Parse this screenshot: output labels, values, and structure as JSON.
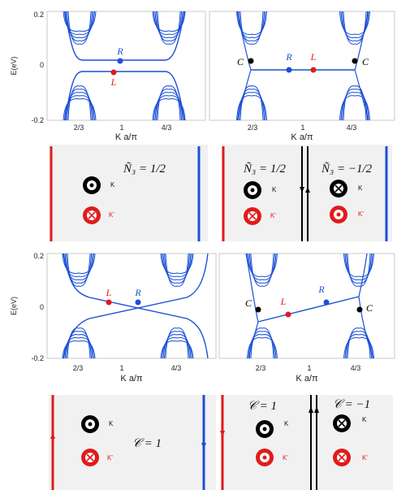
{
  "colors": {
    "blue": "#1a4fd6",
    "red": "#e01b1b",
    "panel": "#f1f1f1",
    "black": "#000000"
  },
  "plots": [
    {
      "id": "top-left",
      "y_ticks": [
        "0.2",
        "0",
        "-0.2"
      ],
      "x_ticks": [
        "2/3",
        "1",
        "4/3"
      ],
      "ylabel": "E(eV)",
      "xlabel": "K a/π",
      "points": [
        {
          "label": "R",
          "color": "blue"
        },
        {
          "label": "L",
          "color": "red"
        }
      ]
    },
    {
      "id": "top-right",
      "x_ticks": [
        "2/3",
        "1",
        "4/3"
      ],
      "xlabel": "K a/π",
      "points": [
        {
          "label": "C",
          "color": "black"
        },
        {
          "label": "R",
          "color": "blue"
        },
        {
          "label": "L",
          "color": "red"
        },
        {
          "label": "C",
          "color": "black"
        }
      ]
    },
    {
      "id": "bottom-left",
      "y_ticks": [
        "0.2",
        "0",
        "-0.2"
      ],
      "x_ticks": [
        "2/3",
        "1",
        "4/3"
      ],
      "ylabel": "E(eV)",
      "xlabel": "K a/π",
      "points": [
        {
          "label": "L",
          "color": "red"
        },
        {
          "label": "R",
          "color": "blue"
        }
      ]
    },
    {
      "id": "bottom-right",
      "x_ticks": [
        "2/3",
        "1",
        "4/3"
      ],
      "xlabel": "K a/π",
      "points": [
        {
          "label": "C",
          "color": "black"
        },
        {
          "label": "L",
          "color": "red"
        },
        {
          "label": "R",
          "color": "blue"
        },
        {
          "label": "C",
          "color": "black"
        }
      ]
    }
  ],
  "schematics": {
    "top_left": {
      "k": "K",
      "kp": "K'",
      "eq": "Ñ₃ = 1/2"
    },
    "top_right": {
      "k": "K",
      "kp": "K'",
      "k2": "K",
      "kp2": "K'",
      "eq_left": "Ñ₃ = 1/2",
      "eq_right": "Ñ₃ = −1/2"
    },
    "bottom_left": {
      "k": "K",
      "kp": "K'",
      "eq": "𝒞 = 1"
    },
    "bottom_right": {
      "k": "K",
      "kp": "K'",
      "k2": "K",
      "kp2": "K'",
      "eq_left": "𝒞 = 1",
      "eq_right": "𝒞 = −1"
    }
  }
}
